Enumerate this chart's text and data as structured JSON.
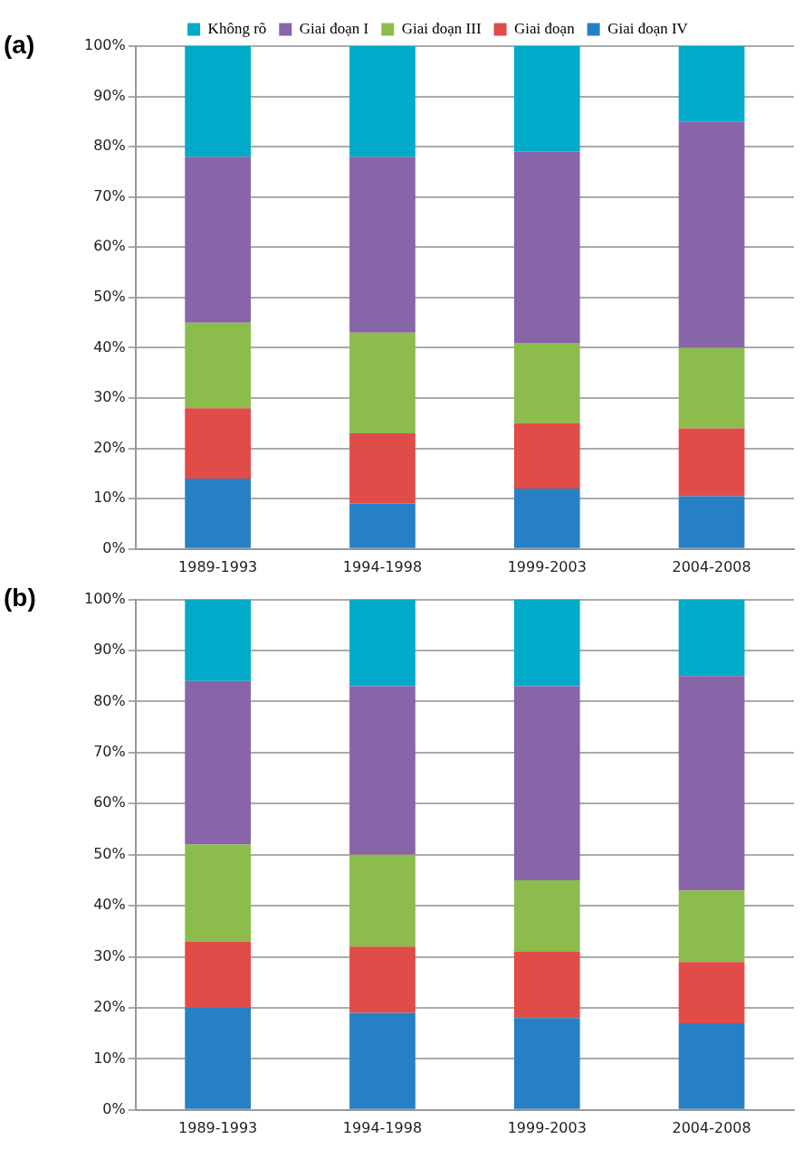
{
  "chart_data": [
    {
      "type": "bar",
      "title": "(a)",
      "stacked": true,
      "grid": "y",
      "legend": "top",
      "categories": [
        "1989-1993",
        "1994-1998",
        "1999-2003",
        "2004-2008"
      ],
      "series": [
        {
          "name": "Giai đoạn IV",
          "color": "#2880c4",
          "values": [
            14,
            9,
            12,
            10.5
          ]
        },
        {
          "name": "Giai đoạn",
          "color": "#e04c48",
          "values": [
            14,
            14,
            13,
            13.5
          ]
        },
        {
          "name": "Giai đoạn III",
          "color": "#8cbc4c",
          "values": [
            17,
            20,
            16,
            16
          ]
        },
        {
          "name": "Giai đoạn I",
          "color": "#8864a8",
          "values": [
            33,
            35,
            38,
            45
          ]
        },
        {
          "name": "Không rõ",
          "color": "#00aac8",
          "values": [
            22,
            22,
            21,
            15
          ]
        }
      ],
      "ylim": [
        0,
        100
      ],
      "yticks": [
        {
          "value": 0,
          "label": "0%"
        },
        {
          "value": 10,
          "label": "10%"
        },
        {
          "value": 20,
          "label": "20%"
        },
        {
          "value": 30,
          "label": "30%"
        },
        {
          "value": 40,
          "label": "40%"
        },
        {
          "value": 50,
          "label": "50%"
        },
        {
          "value": 60,
          "label": "60%"
        },
        {
          "value": 70,
          "label": "70%"
        },
        {
          "value": 80,
          "label": "80%"
        },
        {
          "value": 90,
          "label": "90%"
        },
        {
          "value": 100,
          "label": "100%"
        }
      ]
    },
    {
      "type": "bar",
      "title": "(b)",
      "stacked": true,
      "grid": "y",
      "categories": [
        "1989-1993",
        "1994-1998",
        "1999-2003",
        "2004-2008"
      ],
      "series": [
        {
          "color": "#2880c4",
          "values": [
            20,
            19,
            18,
            17
          ]
        },
        {
          "color": "#e04c48",
          "values": [
            13,
            13,
            13,
            12
          ]
        },
        {
          "color": "#8cbc4c",
          "values": [
            19,
            18,
            14,
            14
          ]
        },
        {
          "color": "#8864a8",
          "values": [
            32,
            33,
            38,
            42
          ]
        },
        {
          "color": "#00aac8",
          "values": [
            16,
            17,
            17,
            15
          ]
        }
      ],
      "ylim": [
        0,
        100
      ],
      "yticks": [
        {
          "value": 0,
          "label": "0%"
        },
        {
          "value": 10,
          "label": "10%"
        },
        {
          "value": 20,
          "label": "20%"
        },
        {
          "value": 30,
          "label": "30%"
        },
        {
          "value": 40,
          "label": "40%"
        },
        {
          "value": 50,
          "label": "50%"
        },
        {
          "value": 60,
          "label": "60%"
        },
        {
          "value": 70,
          "label": "70%"
        },
        {
          "value": 80,
          "label": "80%"
        },
        {
          "value": 90,
          "label": "90%"
        },
        {
          "value": 100,
          "label": "100%"
        }
      ]
    }
  ]
}
